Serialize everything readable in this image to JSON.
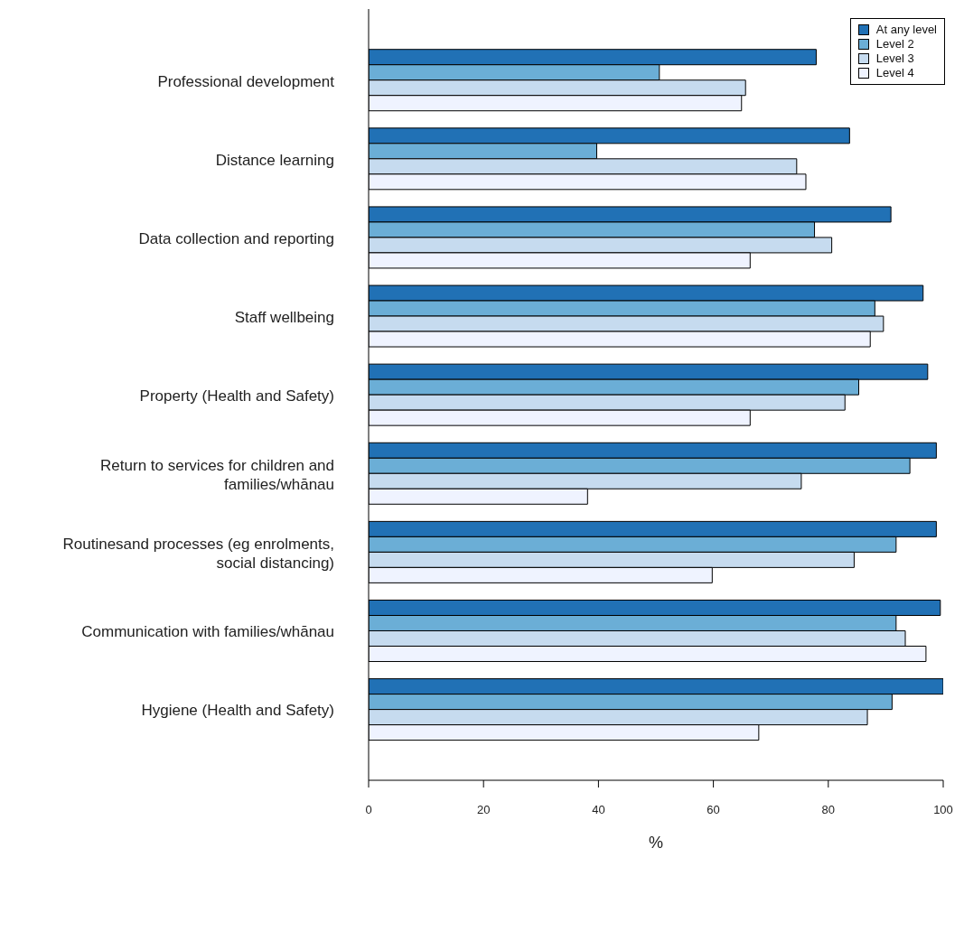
{
  "chart_data": {
    "type": "bar",
    "orientation": "horizontal",
    "xlabel": "%",
    "categories": [
      "Professional development",
      "Distance learning",
      "Data collection and reporting",
      "Staff wellbeing",
      "Property (Health and Safety)",
      "Return to services for children and families/whānau",
      "Routinesand processes (eg enrolments, social distancing)",
      "Communication with families/whānau",
      "Hygiene (Health and Safety)"
    ],
    "series": [
      {
        "name": "At any level",
        "color": "#2171b5",
        "values": [
          77.9,
          83.7,
          90.9,
          96.5,
          97.3,
          98.8,
          98.8,
          99.5,
          100
        ]
      },
      {
        "name": "Level 2",
        "color": "#6baed6",
        "values": [
          50.6,
          39.7,
          77.6,
          88.1,
          85.3,
          94.2,
          91.8,
          91.8,
          91.1
        ]
      },
      {
        "name": "Level 3",
        "color": "#c6dbef",
        "values": [
          65.6,
          74.5,
          80.6,
          89.6,
          82.9,
          75.3,
          84.5,
          93.4,
          86.8
        ]
      },
      {
        "name": "Level 4",
        "color": "#eff3ff",
        "values": [
          64.9,
          76.1,
          66.4,
          87.3,
          66.4,
          38.1,
          59.8,
          97.0,
          67.9
        ]
      }
    ],
    "xlim": [
      0,
      100
    ],
    "xticks": [
      0,
      20,
      40,
      60,
      80,
      100
    ],
    "grid": false,
    "legend": "top right"
  }
}
